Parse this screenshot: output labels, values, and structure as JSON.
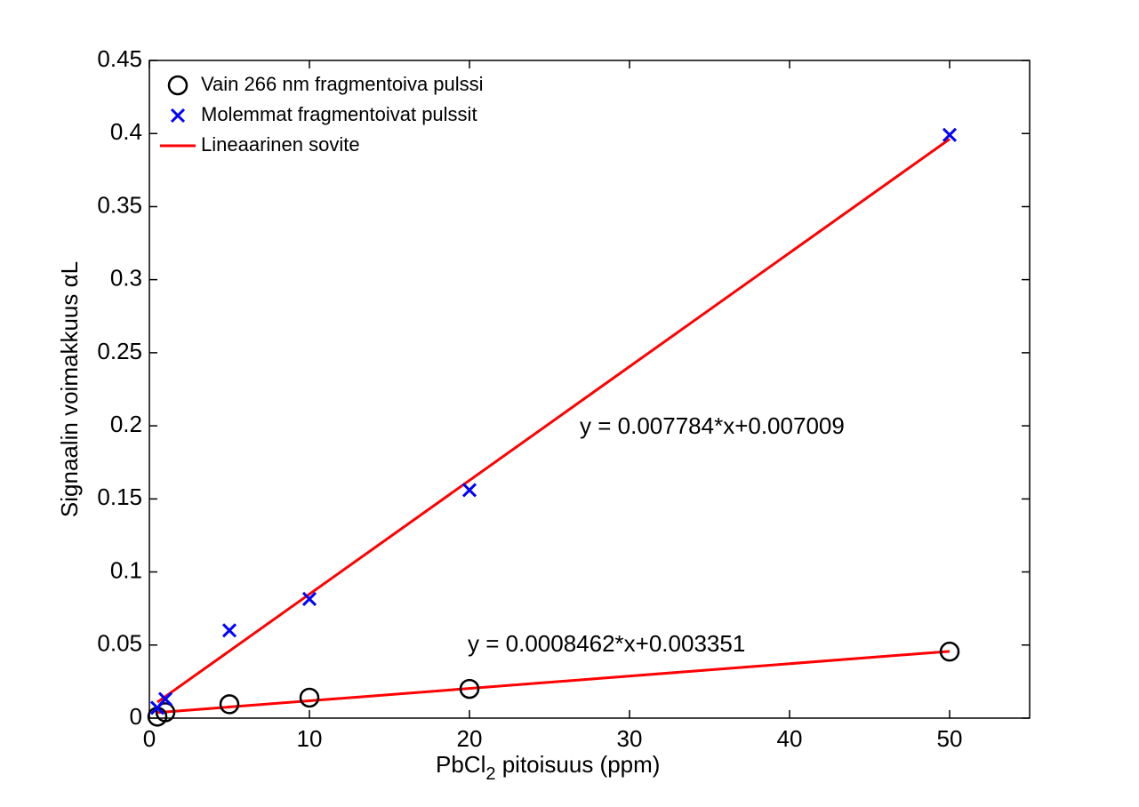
{
  "chart_data": {
    "type": "scatter",
    "xlabel": [
      "PbCl",
      "2",
      " pitoisuus (ppm)"
    ],
    "ylabel": "Signaalin voimakkuus αL",
    "xlim": [
      0,
      55
    ],
    "xticks": [
      0,
      10,
      20,
      30,
      40,
      50
    ],
    "ylim": [
      0,
      0.45
    ],
    "yticks": [
      0,
      0.05,
      0.1,
      0.15,
      0.2,
      0.25,
      0.3,
      0.35,
      0.4,
      0.45
    ],
    "legend": "upper left",
    "series": [
      {
        "name": "Vain 266 nm fragmentoiva pulssi",
        "marker": "circle",
        "color": "#000000",
        "x": [
          0.5,
          1,
          5,
          10,
          20,
          50
        ],
        "values": [
          0.001,
          0.004,
          0.0095,
          0.014,
          0.02,
          0.0455
        ]
      },
      {
        "name": "Molemmat fragmentoivat pulssit",
        "marker": "cross",
        "color": "#0000ff",
        "x": [
          0.5,
          1,
          5,
          10,
          20,
          50
        ],
        "values": [
          0.007,
          0.013,
          0.06,
          0.0815,
          0.156,
          0.399
        ]
      },
      {
        "name": "Lineaarinen sovite",
        "marker": "line",
        "color": "#ff0000",
        "x": [
          0.5,
          50
        ],
        "values": [
          0.0109,
          0.3962
        ]
      },
      {
        "marker": "line",
        "color": "#ff0000",
        "x": [
          0.5,
          50
        ],
        "values": [
          0.0038,
          0.0457
        ]
      }
    ],
    "annotations": [
      "y = 0.007784*x+0.007009",
      "y = 0.0008462*x+0.003351"
    ]
  }
}
